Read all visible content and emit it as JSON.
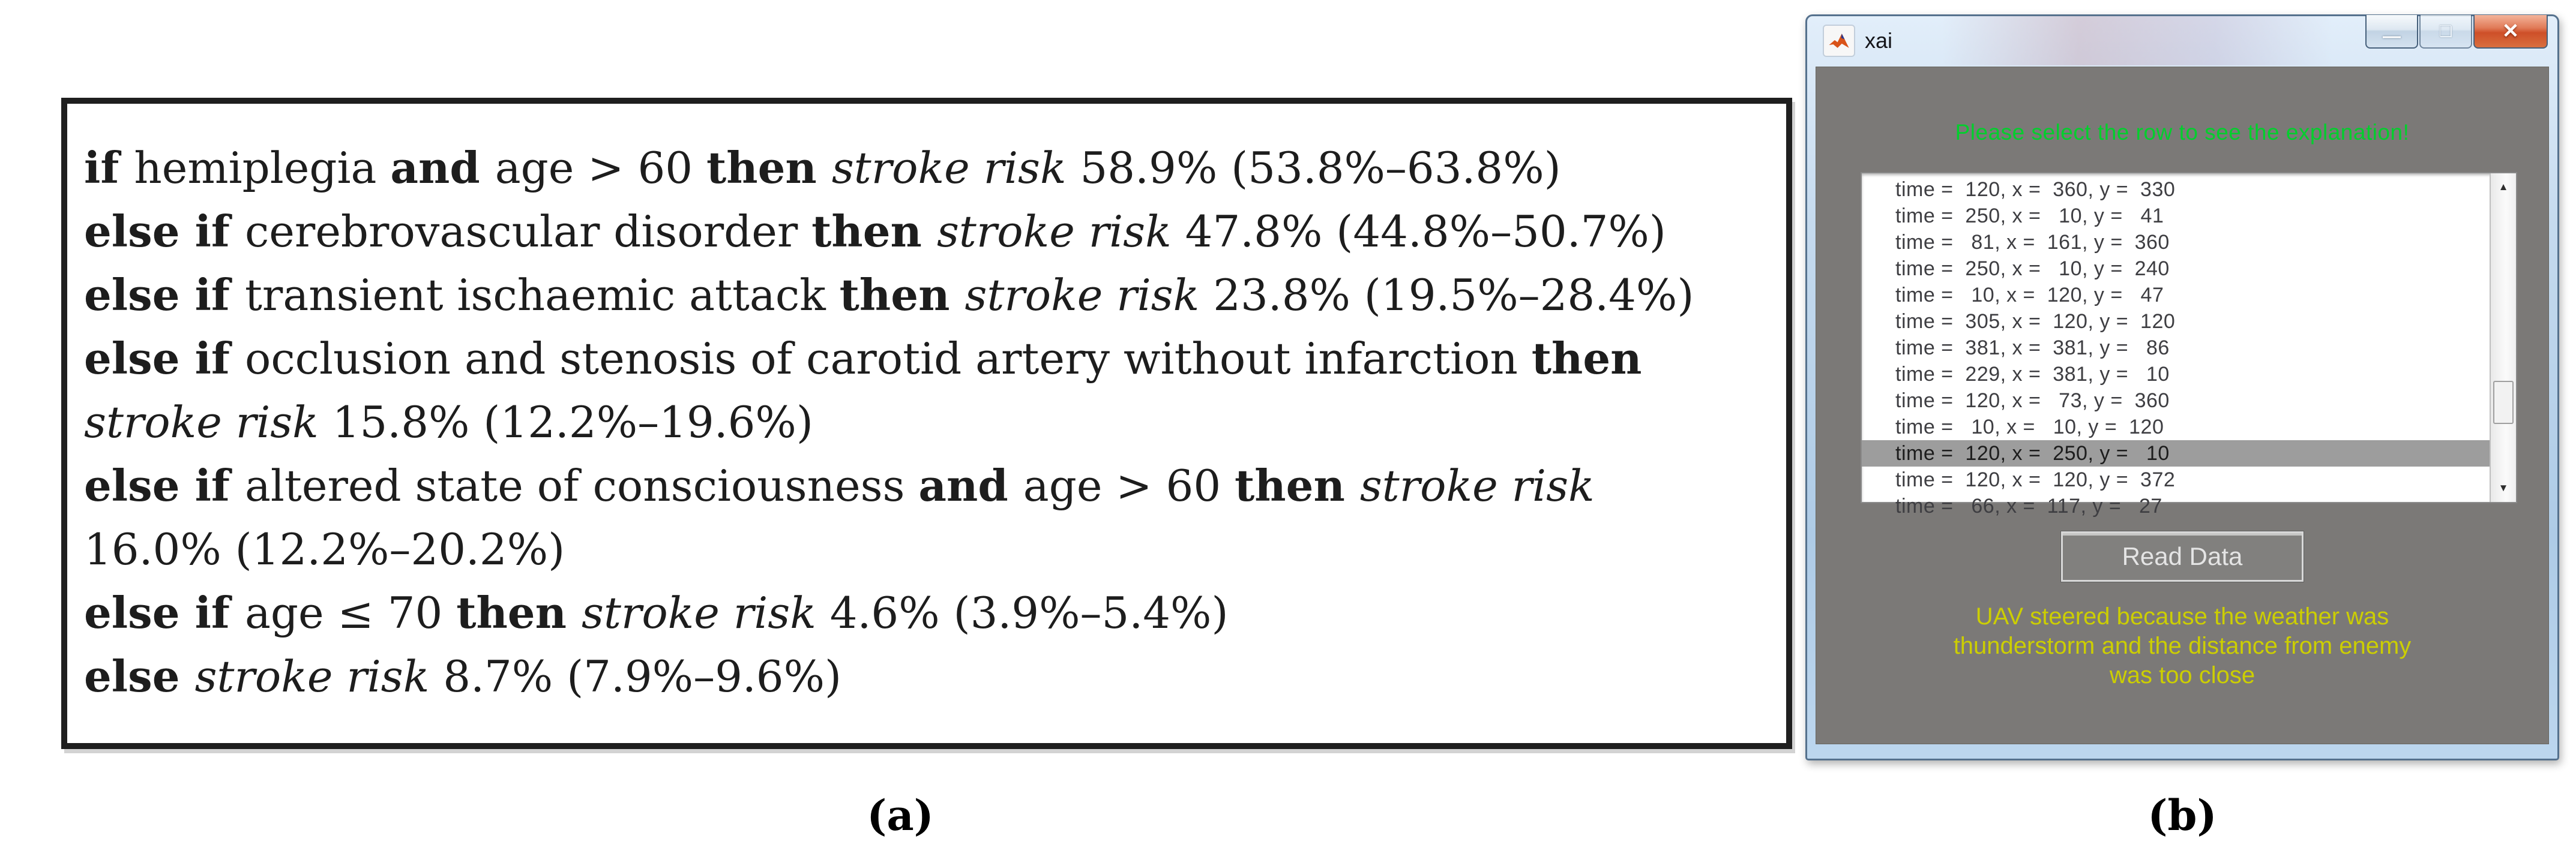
{
  "figure": {
    "panel_a_label": "(a)",
    "panel_b_label": "(b)"
  },
  "panel_a": {
    "rules_lines": [
      [
        {
          "t": "if ",
          "s": "b"
        },
        {
          "t": "hemiplegia ",
          "s": "r"
        },
        {
          "t": "and ",
          "s": "b"
        },
        {
          "t": "age > 60 ",
          "s": "r"
        },
        {
          "t": "then ",
          "s": "b"
        },
        {
          "t": "stroke risk ",
          "s": "i"
        },
        {
          "t": "58.9% (53.8%–63.8%)",
          "s": "r"
        }
      ],
      [
        {
          "t": "else if ",
          "s": "b"
        },
        {
          "t": "cerebrovascular disorder ",
          "s": "r"
        },
        {
          "t": "then ",
          "s": "b"
        },
        {
          "t": "stroke risk ",
          "s": "i"
        },
        {
          "t": "47.8% (44.8%–50.7%)",
          "s": "r"
        }
      ],
      [
        {
          "t": "else if ",
          "s": "b"
        },
        {
          "t": "transient ischaemic attack ",
          "s": "r"
        },
        {
          "t": "then ",
          "s": "b"
        },
        {
          "t": "stroke risk ",
          "s": "i"
        },
        {
          "t": "23.8% (19.5%–28.4%)",
          "s": "r"
        }
      ],
      [
        {
          "t": "else if ",
          "s": "b"
        },
        {
          "t": "occlusion and stenosis of carotid artery without infarction ",
          "s": "r"
        },
        {
          "t": "then",
          "s": "b"
        }
      ],
      [
        {
          "t": "stroke risk ",
          "s": "i"
        },
        {
          "t": "15.8% (12.2%–19.6%)",
          "s": "r"
        }
      ],
      [
        {
          "t": "else if ",
          "s": "b"
        },
        {
          "t": "altered state of consciousness ",
          "s": "r"
        },
        {
          "t": "and ",
          "s": "b"
        },
        {
          "t": "age > 60 ",
          "s": "r"
        },
        {
          "t": "then ",
          "s": "b"
        },
        {
          "t": "stroke risk",
          "s": "i"
        }
      ],
      [
        {
          "t": "16.0% (12.2%–20.2%)",
          "s": "r"
        }
      ],
      [
        {
          "t": "else if ",
          "s": "b"
        },
        {
          "t": "age ≤ 70 ",
          "s": "r"
        },
        {
          "t": "then ",
          "s": "b"
        },
        {
          "t": "stroke risk ",
          "s": "i"
        },
        {
          "t": "4.6% (3.9%–5.4%)",
          "s": "r"
        }
      ],
      [
        {
          "t": "else ",
          "s": "b"
        },
        {
          "t": "stroke risk ",
          "s": "i"
        },
        {
          "t": "8.7% (7.9%–9.6%)",
          "s": "r"
        }
      ]
    ]
  },
  "panel_b": {
    "window_title": "xai",
    "titlebar_icon": "matlab-icon",
    "caption": {
      "minimize_glyph": "—",
      "maximize_glyph": "❏",
      "close_glyph": "✕"
    },
    "prompt": "Please select the row to see the explanation!",
    "listbox": {
      "rows": [
        "time =  120, x =  360, y =  330",
        "time =  250, x =   10, y =   41",
        "time =   81, x =  161, y =  360",
        "time =  250, x =   10, y =  240",
        "time =   10, x =  120, y =   47",
        "time =  305, x =  120, y =  120",
        "time =  381, x =  381, y =   86",
        "time =  229, x =  381, y =   10",
        "time =  120, x =   73, y =  360",
        "time =   10, x =   10, y =  120",
        "time =  120, x =  250, y =   10",
        "time =  120, x =  120, y =  372",
        "time =   66, x =  117, y =   27"
      ],
      "selected_index": 10,
      "scrollbar_up": "▲",
      "scrollbar_down": "▼"
    },
    "read_data_label": "Read Data",
    "explanation_lines": [
      "UAV steered because the weather was",
      "thunderstorm and the distance from enemy",
      "was too close"
    ]
  },
  "colors": {
    "prompt_green": "#00d02c",
    "explanation_yellow": "#ccce00",
    "window_body_gray": "#7b7977",
    "selected_row_bg": "#9d9d9d",
    "close_button_red": "#ce4f28",
    "titlebar_blue": "#bcd6ee"
  }
}
